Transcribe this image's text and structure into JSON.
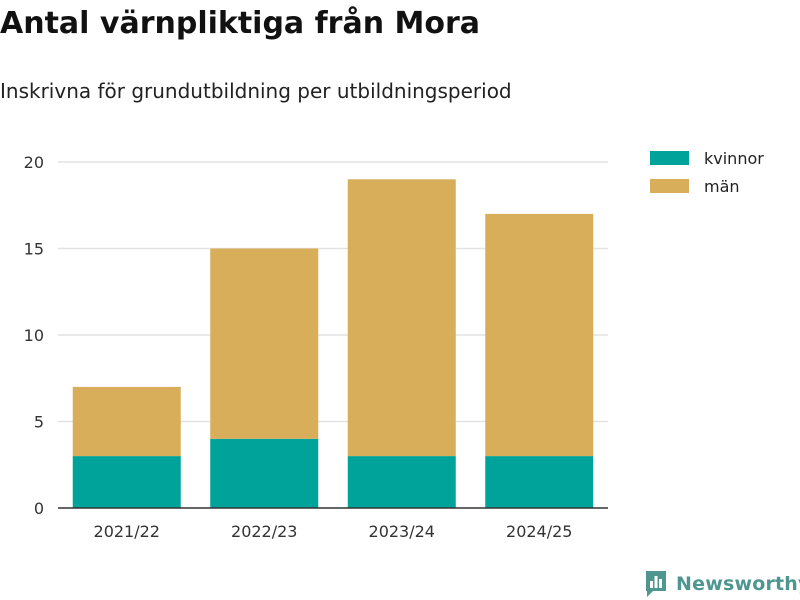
{
  "brand": {
    "name": "Newsworthy",
    "color": "#4f9690"
  },
  "chart_data": {
    "type": "bar",
    "stacked": true,
    "title": "Antal värnpliktiga från Mora",
    "subtitle": "Inskrivna för grundutbildning per utbildningsperiod",
    "categories": [
      "2021/22",
      "2022/23",
      "2023/24",
      "2024/25"
    ],
    "series": [
      {
        "name": "kvinnor",
        "values": [
          3,
          4,
          3,
          3
        ],
        "color": "#00a399"
      },
      {
        "name": "män",
        "values": [
          4,
          11,
          16,
          14
        ],
        "color": "#d9ae5a"
      }
    ],
    "ylim": [
      0,
      20
    ],
    "yticks": [
      "0",
      "5",
      "10",
      "15",
      "20"
    ],
    "grid": true,
    "legend": "top-right"
  }
}
